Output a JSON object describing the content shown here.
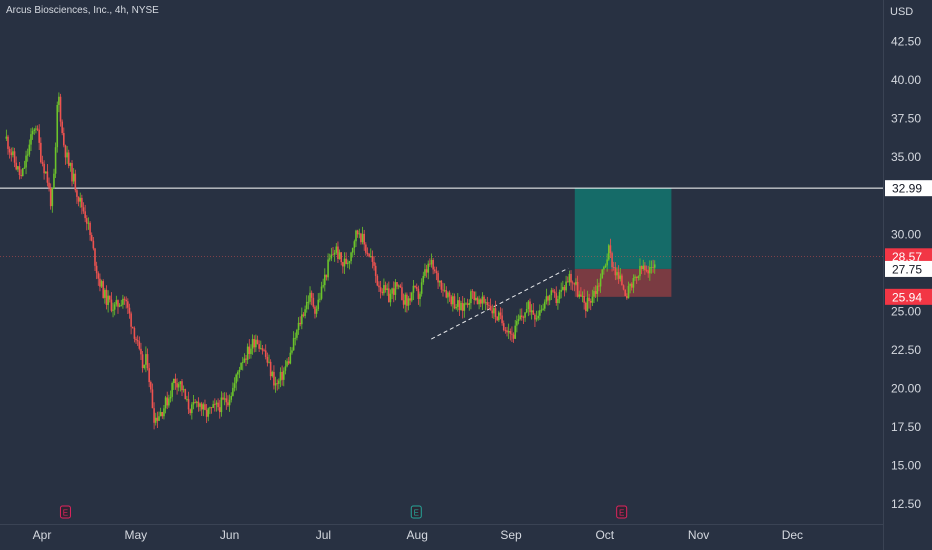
{
  "header": {
    "title": "Arcus Biosciences, Inc., 4h, NYSE",
    "currency": "USD"
  },
  "colors": {
    "background": "#283142",
    "axis_text": "#d5d9e0",
    "up": "#26a69a",
    "up_candle": "#6cc42b",
    "down": "#ef5350",
    "target_zone": "#156b68",
    "stop_zone": "#7a3b42",
    "level_line": "#ffffff",
    "earnings_red": "#e0245e",
    "earnings_teal": "#26a69a"
  },
  "chart_data": {
    "type": "candlestick",
    "y_axis": {
      "ticks": [
        "42.50",
        "40.00",
        "37.50",
        "35.00",
        "30.00",
        "25.00",
        "22.50",
        "20.00",
        "17.50",
        "15.00",
        "12.50"
      ],
      "range": [
        11.2,
        45.2
      ]
    },
    "x_axis": {
      "labels": [
        "Apr",
        "May",
        "Jun",
        "Jul",
        "Aug",
        "Sep",
        "Oct",
        "Nov",
        "Dec"
      ]
    },
    "price_labels": [
      {
        "text": "32.99",
        "value": 32.99,
        "style": "white"
      },
      {
        "text": "28.57",
        "value": 28.57,
        "style": "red"
      },
      {
        "text": "27.75",
        "value": 27.75,
        "style": "white"
      },
      {
        "text": "25.94",
        "value": 25.94,
        "style": "red"
      }
    ],
    "horizontal_level": 32.99,
    "last_price": 28.57,
    "position": {
      "entry": 27.75,
      "target": 32.99,
      "stop": 25.94,
      "start_month": 9.68,
      "end_month": 10.71
    },
    "trendline": {
      "from": [
        8.15,
        23.2
      ],
      "to": [
        9.61,
        27.8
      ]
    },
    "earnings_markers": [
      {
        "label": "E",
        "month": 4.25,
        "kind": "red"
      },
      {
        "label": "E",
        "month": 7.99,
        "kind": "teal"
      },
      {
        "label": "E",
        "month": 10.18,
        "kind": "red"
      }
    ],
    "price_path": [
      [
        3.62,
        36.2
      ],
      [
        3.7,
        34.8
      ],
      [
        3.78,
        33.6
      ],
      [
        3.86,
        35.6
      ],
      [
        3.93,
        37.3
      ],
      [
        3.99,
        35.0
      ],
      [
        4.05,
        33.8
      ],
      [
        4.1,
        31.9
      ],
      [
        4.14,
        34.5
      ],
      [
        4.17,
        39.5
      ],
      [
        4.22,
        36.2
      ],
      [
        4.28,
        34.6
      ],
      [
        4.34,
        33.5
      ],
      [
        4.4,
        32.2
      ],
      [
        4.47,
        31.2
      ],
      [
        4.53,
        29.4
      ],
      [
        4.6,
        27.2
      ],
      [
        4.68,
        25.8
      ],
      [
        4.78,
        25.2
      ],
      [
        4.87,
        26.0
      ],
      [
        4.94,
        24.6
      ],
      [
        5.0,
        23.3
      ],
      [
        5.04,
        22.1
      ],
      [
        5.08,
        21.3
      ],
      [
        5.12,
        22.0
      ],
      [
        5.16,
        19.7
      ],
      [
        5.2,
        18.0
      ],
      [
        5.28,
        18.6
      ],
      [
        5.35,
        19.4
      ],
      [
        5.41,
        20.6
      ],
      [
        5.48,
        20.3
      ],
      [
        5.54,
        19.0
      ],
      [
        5.6,
        18.6
      ],
      [
        5.67,
        19.2
      ],
      [
        5.74,
        18.3
      ],
      [
        5.82,
        18.6
      ],
      [
        5.9,
        18.9
      ],
      [
        5.98,
        19.3
      ],
      [
        6.05,
        20.2
      ],
      [
        6.12,
        21.8
      ],
      [
        6.2,
        22.4
      ],
      [
        6.28,
        23.3
      ],
      [
        6.36,
        22.5
      ],
      [
        6.43,
        21.2
      ],
      [
        6.5,
        20.1
      ],
      [
        6.57,
        21.0
      ],
      [
        6.64,
        22.0
      ],
      [
        6.71,
        23.5
      ],
      [
        6.78,
        24.9
      ],
      [
        6.85,
        26.0
      ],
      [
        6.92,
        25.1
      ],
      [
        6.99,
        26.6
      ],
      [
        7.06,
        28.2
      ],
      [
        7.13,
        29.1
      ],
      [
        7.2,
        28.0
      ],
      [
        7.27,
        28.4
      ],
      [
        7.33,
        29.8
      ],
      [
        7.38,
        30.3
      ],
      [
        7.44,
        29.2
      ],
      [
        7.5,
        28.6
      ],
      [
        7.57,
        27.0
      ],
      [
        7.63,
        26.4
      ],
      [
        7.7,
        25.9
      ],
      [
        7.76,
        26.6
      ],
      [
        7.83,
        26.1
      ],
      [
        7.89,
        25.5
      ],
      [
        7.95,
        26.3
      ],
      [
        8.02,
        26.0
      ],
      [
        8.08,
        27.4
      ],
      [
        8.14,
        28.1
      ],
      [
        8.2,
        27.3
      ],
      [
        8.26,
        26.8
      ],
      [
        8.33,
        26.1
      ],
      [
        8.4,
        25.6
      ],
      [
        8.47,
        25.1
      ],
      [
        8.54,
        25.8
      ],
      [
        8.6,
        26.2
      ],
      [
        8.67,
        25.4
      ],
      [
        8.74,
        25.7
      ],
      [
        8.81,
        25.0
      ],
      [
        8.89,
        24.4
      ],
      [
        8.96,
        24.0
      ],
      [
        9.02,
        23.4
      ],
      [
        9.08,
        24.3
      ],
      [
        9.14,
        24.9
      ],
      [
        9.2,
        25.3
      ],
      [
        9.27,
        24.8
      ],
      [
        9.34,
        25.5
      ],
      [
        9.41,
        26.0
      ],
      [
        9.48,
        25.8
      ],
      [
        9.55,
        26.4
      ],
      [
        9.62,
        27.3
      ],
      [
        9.68,
        26.8
      ],
      [
        9.74,
        25.8
      ],
      [
        9.8,
        25.4
      ],
      [
        9.86,
        26.0
      ],
      [
        9.92,
        26.6
      ],
      [
        9.98,
        27.6
      ],
      [
        10.04,
        29.0
      ],
      [
        10.09,
        28.0
      ],
      [
        10.14,
        27.2
      ],
      [
        10.19,
        26.8
      ],
      [
        10.24,
        26.1
      ],
      [
        10.3,
        26.7
      ],
      [
        10.36,
        27.4
      ],
      [
        10.41,
        27.9
      ],
      [
        10.46,
        27.2
      ],
      [
        10.51,
        28.1
      ],
      [
        10.55,
        28.57
      ]
    ]
  }
}
